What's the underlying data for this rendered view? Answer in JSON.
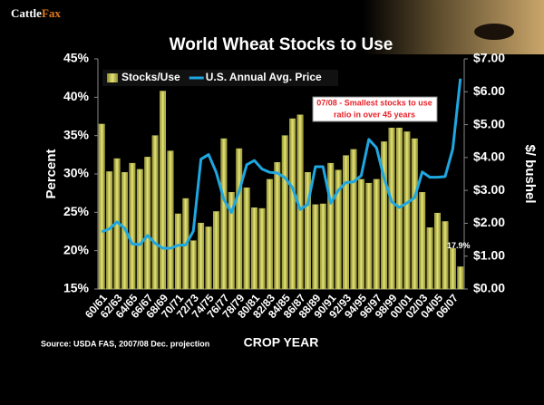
{
  "chart_data": {
    "type": "bar_line",
    "logo": [
      "Cattle",
      "Fax"
    ],
    "title": "World Wheat Stocks to Use",
    "y_label": "Percent",
    "y2_label": "$/ bushel",
    "x_label": "CROP YEAR",
    "source": "Source: USDA FAS, 2007/08 Dec. projection",
    "annotation": [
      "07/08 - Smallest stocks to use",
      "ratio in over 45 years"
    ],
    "categories": [
      "60/61",
      null,
      "62/63",
      null,
      "64/65",
      null,
      "66/67",
      null,
      "68/69",
      null,
      "70/71",
      null,
      "72/73",
      null,
      "74/75",
      null,
      "76/77",
      null,
      "78/79",
      null,
      "80/81",
      null,
      "82/83",
      null,
      "84/85",
      null,
      "86/87",
      null,
      "88/89",
      null,
      "90/91",
      null,
      "92/93",
      null,
      "94/95",
      null,
      "96/97",
      null,
      "98/99",
      null,
      "00/01",
      null,
      "02/03",
      null,
      "04/05",
      null,
      "06/07",
      null
    ],
    "series": [
      {
        "name": "Stocks/Use",
        "type": "bar",
        "color": "#c9c85c",
        "values": [
          36.5,
          30.3,
          32.0,
          30.2,
          31.4,
          30.6,
          32.2,
          35.0,
          40.8,
          33.0,
          24.8,
          26.8,
          21.3,
          23.6,
          23.1,
          25.1,
          34.6,
          27.6,
          33.3,
          28.2,
          25.6,
          25.5,
          29.3,
          31.5,
          35.0,
          37.2,
          37.7,
          30.2,
          26.0,
          26.1,
          31.4,
          30.5,
          32.4,
          33.2,
          29.3,
          28.8,
          29.3,
          34.2,
          36.0,
          36.0,
          35.5,
          34.6,
          27.6,
          23.0,
          24.9,
          23.8,
          20.3,
          17.9
        ],
        "value_labels": [
          null,
          null,
          null,
          null,
          null,
          null,
          null,
          null,
          null,
          null,
          null,
          null,
          null,
          null,
          null,
          null,
          null,
          null,
          null,
          null,
          null,
          null,
          null,
          null,
          null,
          null,
          null,
          null,
          null,
          null,
          null,
          null,
          null,
          null,
          null,
          null,
          null,
          null,
          null,
          null,
          null,
          null,
          null,
          null,
          null,
          null,
          null,
          "17.9%"
        ]
      },
      {
        "name": "U.S. Annual Avg. Price",
        "type": "line",
        "axis": "y2",
        "color": "#1ea7e1",
        "values": [
          1.74,
          1.83,
          2.04,
          1.85,
          1.37,
          1.35,
          1.63,
          1.39,
          1.24,
          1.24,
          1.33,
          1.34,
          1.76,
          3.95,
          4.09,
          3.55,
          2.73,
          2.33,
          2.97,
          3.78,
          3.91,
          3.65,
          3.55,
          3.53,
          3.39,
          3.08,
          2.42,
          2.57,
          3.72,
          3.72,
          2.61,
          3.0,
          3.24,
          3.26,
          3.45,
          4.55,
          4.3,
          3.38,
          2.65,
          2.48,
          2.62,
          2.78,
          3.56,
          3.4,
          3.4,
          3.42,
          4.26,
          6.4
        ]
      }
    ],
    "ylim": [
      15,
      45
    ],
    "yticks": [
      {
        "value": 15,
        "label": "15%"
      },
      {
        "value": 20,
        "label": "20%"
      },
      {
        "value": 25,
        "label": "25%"
      },
      {
        "value": 30,
        "label": "30%"
      },
      {
        "value": 35,
        "label": "35%"
      },
      {
        "value": 40,
        "label": "40%"
      },
      {
        "value": 45,
        "label": "45%"
      }
    ],
    "y2lim": [
      0,
      7
    ],
    "y2ticks": [
      {
        "value": 0,
        "label": "$0.00"
      },
      {
        "value": 1,
        "label": "$1.00"
      },
      {
        "value": 2,
        "label": "$2.00"
      },
      {
        "value": 3,
        "label": "$3.00"
      },
      {
        "value": 4,
        "label": "$4.00"
      },
      {
        "value": 5,
        "label": "$5.00"
      },
      {
        "value": 6,
        "label": "$6.00"
      },
      {
        "value": 7,
        "label": "$7.00"
      }
    ],
    "grid": false
  }
}
